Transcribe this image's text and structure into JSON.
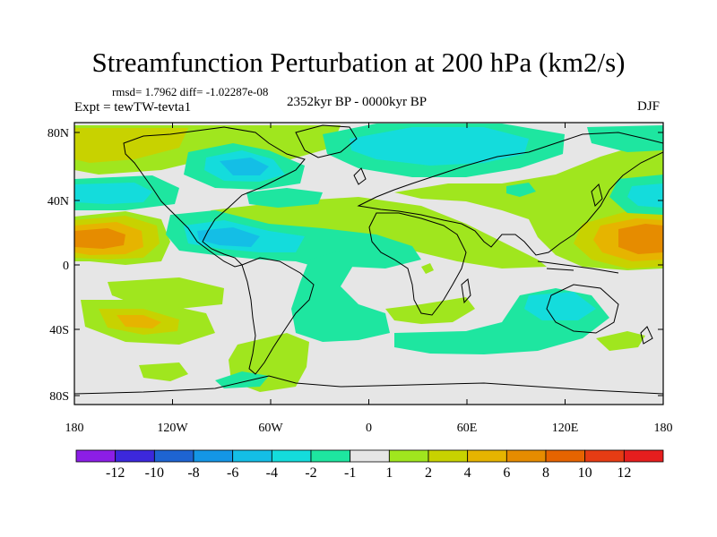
{
  "header": {
    "title": "Streamfunction Perturbation at 200 hPa (km2/s)",
    "stats": "rmsd= 1.7962 diff= -1.02287e-08",
    "experiment": "Expt = tewTW-tevta1",
    "period": "2352kyr BP - 0000kyr BP",
    "season": "DJF"
  },
  "map": {
    "x_labels": [
      "180",
      "120W",
      "60W",
      "0",
      "60E",
      "120E",
      "180"
    ],
    "y_labels": [
      "80N",
      "40N",
      "0",
      "40S",
      "80S"
    ]
  },
  "colorbar": {
    "labels": [
      "-12",
      "-10",
      "-8",
      "-6",
      "-4",
      "-2",
      "-1",
      "1",
      "2",
      "4",
      "6",
      "8",
      "10",
      "12"
    ],
    "colors": [
      "#8c1ee6",
      "#3c28dc",
      "#1e64d2",
      "#1496e6",
      "#14bee6",
      "#14dcdc",
      "#1ee6a0",
      "#e6e6e6",
      "#a0e61e",
      "#c8d200",
      "#e6b400",
      "#e68c00",
      "#e66400",
      "#e63c14",
      "#e61e1e"
    ],
    "bg_color": "#e6e6e6"
  }
}
